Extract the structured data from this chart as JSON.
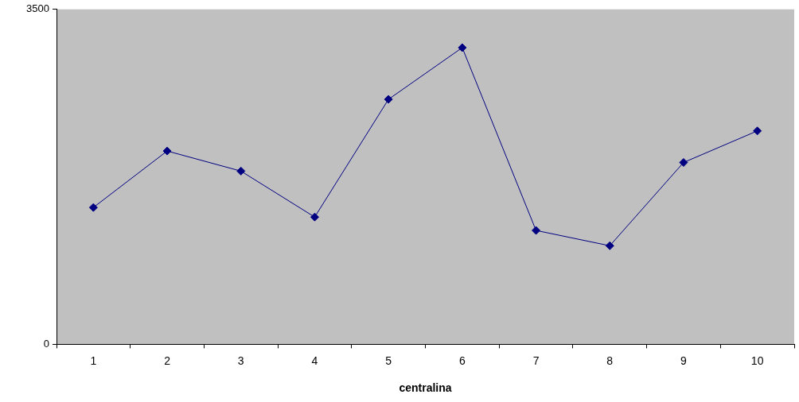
{
  "chart_data": {
    "type": "line",
    "xlabel": "centralina",
    "categories": [
      "1",
      "2",
      "3",
      "4",
      "5",
      "6",
      "7",
      "8",
      "9",
      "10"
    ],
    "series": [
      {
        "color": "#000080",
        "values": [
          1430,
          2020,
          1810,
          1330,
          2560,
          3100,
          1190,
          1030,
          1900,
          2230
        ]
      }
    ],
    "ylim": [
      0,
      3500
    ],
    "yticks": [
      0,
      3500
    ],
    "grid": false,
    "legend": false,
    "marker": "diamond",
    "line_style": "solid"
  }
}
